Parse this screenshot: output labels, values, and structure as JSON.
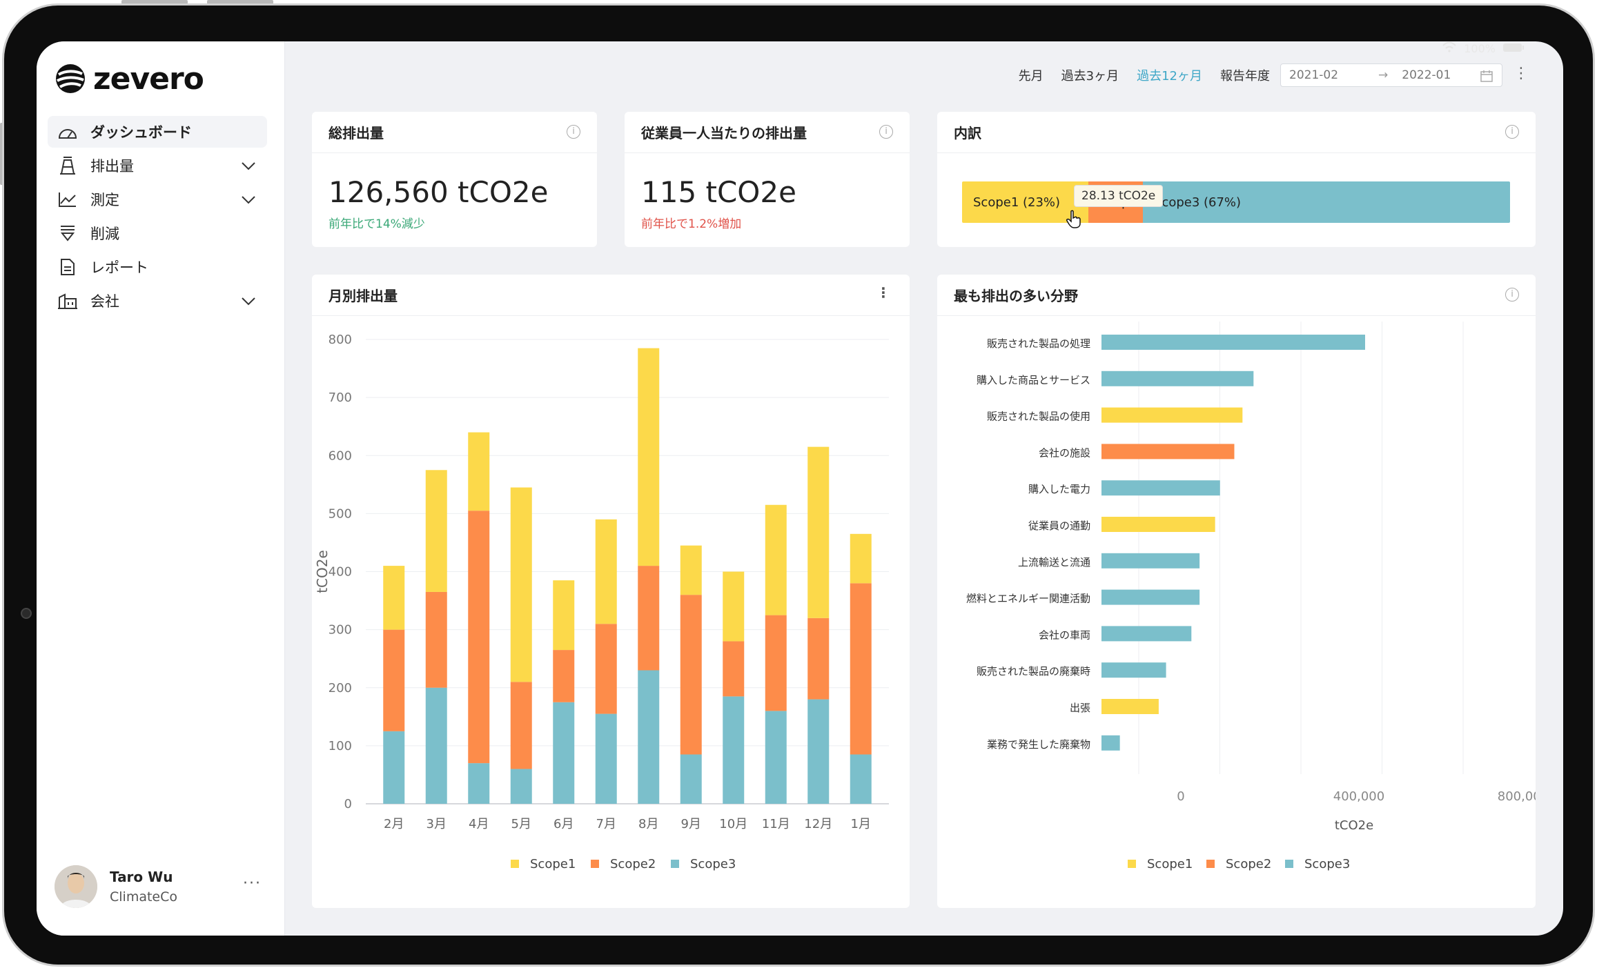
{
  "app": {
    "logo": "zevero"
  },
  "sidebar": {
    "items": [
      {
        "label": "ダッシュボード",
        "icon": "gauge-icon",
        "expandable": false,
        "active": true
      },
      {
        "label": "排出量",
        "icon": "factory-icon",
        "expandable": true
      },
      {
        "label": "測定",
        "icon": "line-chart-icon",
        "expandable": true
      },
      {
        "label": "削減",
        "icon": "reduce-icon",
        "expandable": false
      },
      {
        "label": "レポート",
        "icon": "document-icon",
        "expandable": false
      },
      {
        "label": "会社",
        "icon": "building-icon",
        "expandable": true
      }
    ],
    "user": {
      "name": "Taro Wu",
      "org": "ClimateCo",
      "more": "···"
    }
  },
  "topbar": {
    "periods": [
      "先月",
      "過去3ヶ月",
      "過去12ヶ月",
      "報告年度"
    ],
    "active_period": "過去12ヶ月",
    "date_from": "2021-02",
    "date_arrow": "→",
    "date_to": "2022-01"
  },
  "status": {
    "battery": "100%"
  },
  "cards": {
    "total": {
      "title": "総排出量",
      "value": "126,560 tCO2e",
      "change": "前年比で14%減少"
    },
    "per_employee": {
      "title": "従業員一人当たりの排出量",
      "value": "115 tCO2e",
      "change": "前年比で1.2%増加"
    },
    "breakdown": {
      "title": "内訳",
      "segments": [
        {
          "label": "Scope1 (23%)",
          "share": 23,
          "color": "#fcd94a"
        },
        {
          "label": "Scope2 (10%)",
          "share": 10,
          "color": "#fd8c4a"
        },
        {
          "label": "Scope3 (67%)",
          "share": 67,
          "color": "#7bbfcb"
        }
      ],
      "tooltip": "28.13 tCO2e"
    },
    "monthly": {
      "title": "月別排出量"
    },
    "top_sectors": {
      "title": "最も排出の多い分野"
    }
  },
  "colors": {
    "scope1": "#fcd94a",
    "scope2": "#fd8c4a",
    "scope3": "#7bbfcb",
    "accent": "#3fa7c7"
  },
  "chart_data": [
    {
      "type": "bar",
      "stacked": true,
      "ylabel": "tCO2e",
      "ylim": [
        0,
        800
      ],
      "yticks": [
        0,
        100,
        200,
        300,
        400,
        500,
        600,
        700,
        800
      ],
      "grid": true,
      "legend": "bottom",
      "categories": [
        "2月",
        "3月",
        "4月",
        "5月",
        "6月",
        "7月",
        "8月",
        "9月",
        "10月",
        "11月",
        "12月",
        "1月"
      ],
      "series": [
        {
          "name": "Scope3",
          "color": "#7bbfcb",
          "values": [
            125,
            200,
            70,
            60,
            175,
            155,
            230,
            85,
            185,
            160,
            180,
            85
          ]
        },
        {
          "name": "Scope2",
          "color": "#fd8c4a",
          "values": [
            175,
            165,
            435,
            150,
            90,
            155,
            180,
            275,
            95,
            165,
            140,
            295
          ]
        },
        {
          "name": "Scope1",
          "color": "#fcd94a",
          "values": [
            110,
            210,
            135,
            335,
            120,
            180,
            375,
            85,
            120,
            190,
            295,
            85
          ]
        }
      ],
      "legend_order": [
        "Scope1",
        "Scope2",
        "Scope3"
      ]
    },
    {
      "type": "bar",
      "orientation": "horizontal",
      "xlabel": "tCO2e",
      "xlim": [
        0,
        1000000
      ],
      "xticks": [
        0,
        400000,
        800000
      ],
      "xtick_labels": [
        "0",
        "400,000",
        "800,000"
      ],
      "grid": true,
      "legend": "bottom",
      "legend_order": [
        "Scope1",
        "Scope2",
        "Scope3"
      ],
      "categories": [
        "販売された製品の処理",
        "購入した商品とサービス",
        "販売された製品の使用",
        "会社の施設",
        "購入した電力",
        "従業員の通勤",
        "上流輸送と流通",
        "燃料とエネルギー関連活動",
        "会社の車両",
        "販売された製品の廃棄時",
        "出張",
        "業務で発生した廃棄物"
      ],
      "values": [
        645000,
        372000,
        345000,
        325000,
        290000,
        278000,
        240000,
        240000,
        220000,
        158000,
        140000,
        45000
      ],
      "scopes": [
        "Scope3",
        "Scope3",
        "Scope1",
        "Scope2",
        "Scope3",
        "Scope1",
        "Scope3",
        "Scope3",
        "Scope3",
        "Scope3",
        "Scope1",
        "Scope3"
      ]
    }
  ]
}
